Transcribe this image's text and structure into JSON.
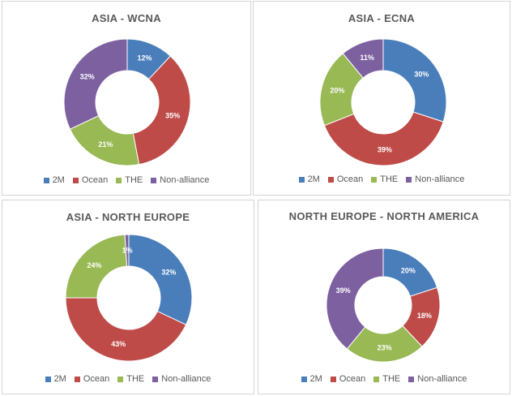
{
  "colors": {
    "2M": "#4a7ebb",
    "Ocean": "#be4b48",
    "THE": "#98b954",
    "Non-alliance": "#7d60a0"
  },
  "chart_data": [
    {
      "type": "pie",
      "title": "ASIA - WCNA",
      "categories": [
        "2M",
        "Ocean",
        "THE",
        "Non-alliance"
      ],
      "values": [
        12,
        35,
        21,
        32
      ],
      "labels": [
        "12%",
        "35%",
        "21%",
        "32%"
      ],
      "legend_position": "bottom"
    },
    {
      "type": "pie",
      "title": "ASIA - ECNA",
      "categories": [
        "2M",
        "Ocean",
        "THE",
        "Non-alliance"
      ],
      "values": [
        30,
        39,
        20,
        11
      ],
      "labels": [
        "30%",
        "39%",
        "20%",
        "11%"
      ],
      "legend_position": "bottom"
    },
    {
      "type": "pie",
      "title": "ASIA - NORTH EUROPE",
      "categories": [
        "2M",
        "Ocean",
        "THE",
        "Non-alliance"
      ],
      "values": [
        32,
        43,
        24,
        1
      ],
      "labels": [
        "32%",
        "43%",
        "24%",
        "1%"
      ],
      "legend_position": "bottom"
    },
    {
      "type": "pie",
      "title": "NORTH EUROPE - NORTH AMERICA",
      "categories": [
        "2M",
        "Ocean",
        "THE",
        "Non-alliance"
      ],
      "values": [
        20,
        18,
        23,
        39
      ],
      "labels": [
        "20%",
        "18%",
        "23%",
        "39%"
      ],
      "legend_position": "bottom"
    }
  ]
}
